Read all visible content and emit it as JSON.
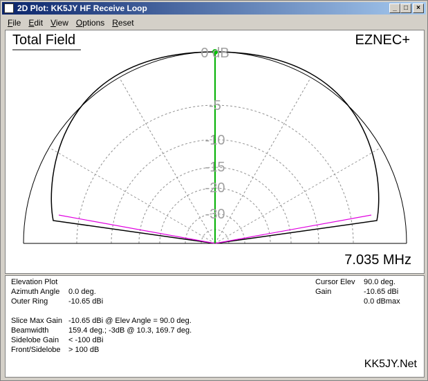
{
  "window": {
    "title": "2D Plot: KK5JY HF Receive Loop",
    "menu": [
      "File",
      "Edit",
      "View",
      "Options",
      "Reset"
    ]
  },
  "plot": {
    "heading": "Total Field",
    "brand": "EZNEC+",
    "frequency": "7.035 MHz",
    "ring_labels": [
      "0 dB",
      "-5",
      "-10",
      "-15",
      "-20",
      "-30"
    ]
  },
  "info": {
    "left": [
      [
        "Elevation Plot",
        ""
      ],
      [
        "Azimuth Angle",
        "0.0 deg."
      ],
      [
        "Outer Ring",
        "-10.65 dBi"
      ],
      [
        "Slice Max Gain",
        "-10.65 dBi @ Elev Angle = 90.0 deg."
      ],
      [
        "Beamwidth",
        "159.4 deg.; -3dB @ 10.3, 169.7 deg."
      ],
      [
        "Sidelobe Gain",
        "< -100 dBi"
      ],
      [
        "Front/Sidelobe",
        "> 100 dB"
      ]
    ],
    "right": [
      [
        "Cursor Elev",
        "90.0 deg."
      ],
      [
        "Gain",
        "-10.65 dBi"
      ],
      [
        "",
        "0.0 dBmax"
      ]
    ],
    "site": "KK5JY.Net"
  }
}
